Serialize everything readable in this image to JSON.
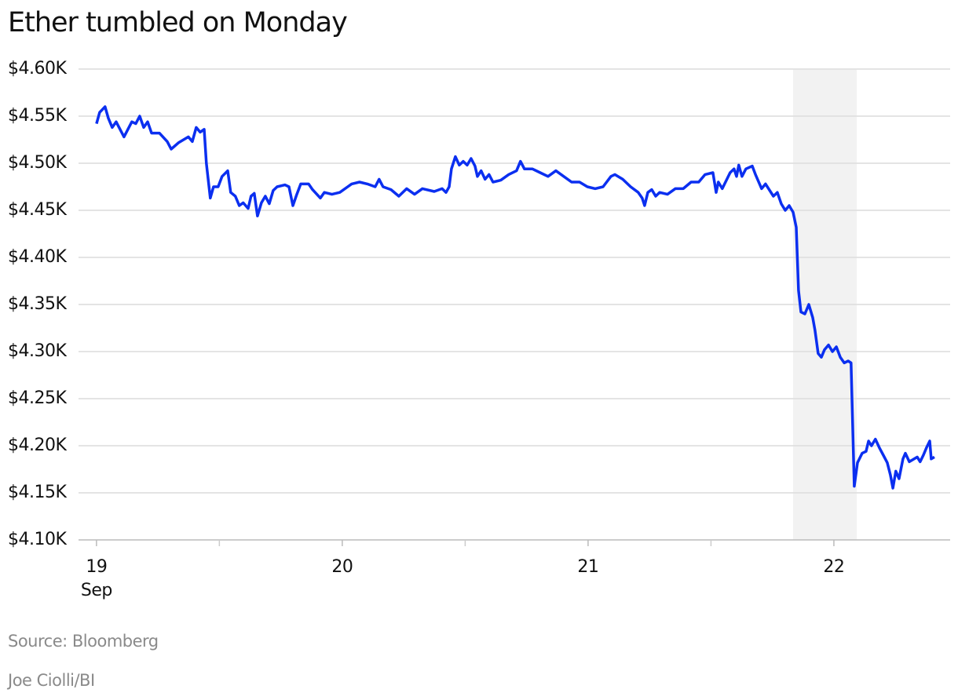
{
  "chart_data": {
    "type": "line",
    "title": "Ether tumbled on Monday",
    "source": "Source: Bloomberg",
    "byline": "Joe Ciolli/BI",
    "x_sublabel": "Sep",
    "xlim": [
      18.927,
      22.473
    ],
    "xticks": [
      19,
      20,
      21,
      22
    ],
    "xminor": [
      19.5,
      20.5,
      21.5
    ],
    "highlight": [
      21.834,
      22.093
    ],
    "ylim": [
      4100,
      4600
    ],
    "yticks": [
      {
        "value": 4100,
        "label": "$4.10K"
      },
      {
        "value": 4150,
        "label": "$4.15K"
      },
      {
        "value": 4200,
        "label": "$4.20K"
      },
      {
        "value": 4250,
        "label": "$4.25K"
      },
      {
        "value": 4300,
        "label": "$4.30K"
      },
      {
        "value": 4350,
        "label": "$4.35K"
      },
      {
        "value": 4400,
        "label": "$4.40K"
      },
      {
        "value": 4450,
        "label": "$4.45K"
      },
      {
        "value": 4500,
        "label": "$4.50K"
      },
      {
        "value": 4550,
        "label": "$4.55K"
      },
      {
        "value": 4600,
        "label": "$4.60K"
      }
    ],
    "grid": true,
    "color": "#0b2ff0",
    "x": [
      19.0,
      19.013,
      19.035,
      19.048,
      19.064,
      19.08,
      19.096,
      19.112,
      19.144,
      19.16,
      19.176,
      19.192,
      19.208,
      19.224,
      19.256,
      19.288,
      19.304,
      19.335,
      19.374,
      19.39,
      19.406,
      19.422,
      19.438,
      19.447,
      19.463,
      19.476,
      19.495,
      19.511,
      19.534,
      19.546,
      19.565,
      19.581,
      19.597,
      19.617,
      19.629,
      19.642,
      19.655,
      19.671,
      19.687,
      19.703,
      19.719,
      19.735,
      19.767,
      19.783,
      19.799,
      19.815,
      19.831,
      19.863,
      19.879,
      19.911,
      19.927,
      19.958,
      19.99,
      20.022,
      20.038,
      20.07,
      20.102,
      20.134,
      20.15,
      20.166,
      20.198,
      20.23,
      20.262,
      20.294,
      20.326,
      20.374,
      20.406,
      20.422,
      20.435,
      20.444,
      20.46,
      20.476,
      20.492,
      20.508,
      20.524,
      20.54,
      20.55,
      20.565,
      20.581,
      20.597,
      20.613,
      20.645,
      20.677,
      20.709,
      20.725,
      20.741,
      20.773,
      20.805,
      20.837,
      20.869,
      20.901,
      20.933,
      20.965,
      20.997,
      21.029,
      21.061,
      21.093,
      21.109,
      21.141,
      21.173,
      21.204,
      21.22,
      21.23,
      21.243,
      21.259,
      21.275,
      21.291,
      21.323,
      21.355,
      21.387,
      21.419,
      21.45,
      21.476,
      21.508,
      21.521,
      21.53,
      21.546,
      21.578,
      21.594,
      21.604,
      21.613,
      21.626,
      21.642,
      21.668,
      21.681,
      21.706,
      21.722,
      21.754,
      21.77,
      21.786,
      21.802,
      21.818,
      21.834,
      21.847,
      21.856,
      21.866,
      21.882,
      21.898,
      21.914,
      21.923,
      21.936,
      21.949,
      21.962,
      21.978,
      21.994,
      22.01,
      22.026,
      22.042,
      22.058,
      22.07,
      22.083,
      22.096,
      22.115,
      22.131,
      22.141,
      22.153,
      22.169,
      22.185,
      22.201,
      22.217,
      22.23,
      22.24,
      22.252,
      22.265,
      22.281,
      22.291,
      22.307,
      22.339,
      22.351,
      22.364,
      22.377,
      22.39,
      22.396,
      22.409
    ],
    "values": [
      4542,
      4554,
      4560,
      4548,
      4538,
      4544,
      4536,
      4528,
      4544,
      4542,
      4550,
      4538,
      4544,
      4532,
      4532,
      4523,
      4515,
      4522,
      4528,
      4523,
      4538,
      4533,
      4536,
      4500,
      4463,
      4475,
      4475,
      4486,
      4492,
      4469,
      4465,
      4455,
      4458,
      4452,
      4465,
      4468,
      4444,
      4458,
      4465,
      4457,
      4471,
      4475,
      4477,
      4475,
      4455,
      4467,
      4478,
      4478,
      4472,
      4463,
      4469,
      4467,
      4469,
      4475,
      4478,
      4480,
      4478,
      4475,
      4483,
      4475,
      4472,
      4465,
      4473,
      4467,
      4473,
      4470,
      4473,
      4469,
      4475,
      4494,
      4507,
      4498,
      4502,
      4498,
      4505,
      4497,
      4486,
      4492,
      4483,
      4488,
      4480,
      4482,
      4488,
      4492,
      4502,
      4494,
      4494,
      4490,
      4486,
      4492,
      4486,
      4480,
      4480,
      4475,
      4473,
      4475,
      4486,
      4488,
      4483,
      4475,
      4469,
      4463,
      4455,
      4469,
      4472,
      4465,
      4469,
      4467,
      4473,
      4473,
      4480,
      4480,
      4488,
      4490,
      4469,
      4480,
      4473,
      4490,
      4494,
      4486,
      4498,
      4486,
      4494,
      4497,
      4488,
      4473,
      4478,
      4465,
      4469,
      4457,
      4450,
      4455,
      4448,
      4432,
      4365,
      4342,
      4340,
      4350,
      4336,
      4323,
      4298,
      4294,
      4302,
      4307,
      4300,
      4305,
      4294,
      4288,
      4290,
      4288,
      4157,
      4182,
      4192,
      4194,
      4205,
      4200,
      4207,
      4198,
      4190,
      4182,
      4169,
      4155,
      4173,
      4165,
      4186,
      4192,
      4183,
      4188,
      4183,
      4190,
      4198,
      4205,
      4186,
      4188
    ]
  }
}
